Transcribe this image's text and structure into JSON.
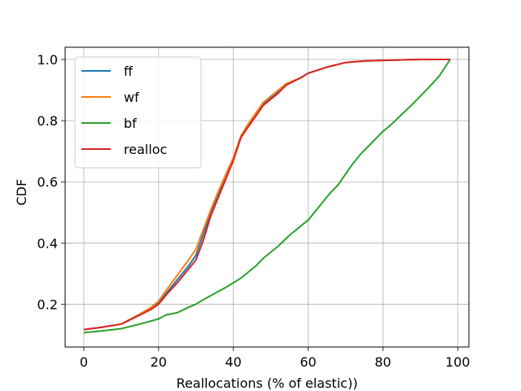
{
  "chart_data": {
    "type": "line",
    "title": "",
    "xlabel": "Reallocations (% of elastic))",
    "ylabel": "CDF",
    "xlim": [
      -5,
      103
    ],
    "ylim": [
      0.06,
      1.04
    ],
    "x_ticks": [
      0,
      20,
      40,
      60,
      80,
      100
    ],
    "y_ticks": [
      0.2,
      0.4,
      0.6,
      0.8,
      1.0
    ],
    "x_tick_labels": [
      "0",
      "20",
      "40",
      "60",
      "80",
      "100"
    ],
    "y_tick_labels": [
      "0.2",
      "0.4",
      "0.6",
      "0.8",
      "1.0"
    ],
    "grid": true,
    "legend_position": "top-left",
    "series": [
      {
        "name": "ff",
        "color": "#1f77b4",
        "x": [
          0,
          5,
          10,
          15,
          18,
          20,
          22,
          25,
          28,
          30,
          32,
          34,
          36,
          38,
          40,
          42,
          44,
          46,
          48,
          50,
          52,
          54,
          56,
          58,
          60,
          65,
          70,
          75,
          80,
          90,
          98
        ],
        "y": [
          0.117,
          0.125,
          0.135,
          0.165,
          0.185,
          0.205,
          0.235,
          0.28,
          0.325,
          0.36,
          0.43,
          0.5,
          0.56,
          0.615,
          0.675,
          0.745,
          0.785,
          0.82,
          0.855,
          0.875,
          0.895,
          0.92,
          0.93,
          0.94,
          0.955,
          0.975,
          0.99,
          0.995,
          0.997,
          1.0,
          1.0
        ]
      },
      {
        "name": "wf",
        "color": "#ff7f0e",
        "x": [
          0,
          5,
          10,
          15,
          18,
          20,
          22,
          25,
          28,
          30,
          32,
          34,
          36,
          38,
          40,
          42,
          44,
          46,
          48,
          50,
          52,
          54,
          56,
          58,
          60,
          65,
          70,
          75,
          80,
          90,
          98
        ],
        "y": [
          0.117,
          0.125,
          0.135,
          0.168,
          0.19,
          0.21,
          0.245,
          0.295,
          0.345,
          0.38,
          0.445,
          0.51,
          0.57,
          0.625,
          0.68,
          0.75,
          0.79,
          0.825,
          0.86,
          0.88,
          0.9,
          0.92,
          0.93,
          0.94,
          0.955,
          0.975,
          0.99,
          0.995,
          0.997,
          1.0,
          1.0
        ]
      },
      {
        "name": "bf",
        "color": "#2ca02c",
        "x": [
          0,
          5,
          10,
          15,
          18,
          20,
          22,
          25,
          28,
          30,
          32,
          35,
          38,
          40,
          42,
          44,
          46,
          48,
          50,
          52,
          55,
          58,
          60,
          62,
          64,
          66,
          68,
          70,
          72,
          74,
          76,
          78,
          80,
          82,
          85,
          88,
          90,
          92,
          95,
          98
        ],
        "y": [
          0.107,
          0.113,
          0.12,
          0.135,
          0.145,
          0.152,
          0.165,
          0.172,
          0.19,
          0.2,
          0.215,
          0.235,
          0.255,
          0.27,
          0.285,
          0.305,
          0.325,
          0.35,
          0.37,
          0.39,
          0.425,
          0.455,
          0.475,
          0.505,
          0.535,
          0.565,
          0.59,
          0.625,
          0.66,
          0.69,
          0.715,
          0.74,
          0.765,
          0.785,
          0.82,
          0.855,
          0.88,
          0.905,
          0.945,
          1.0
        ]
      },
      {
        "name": "realloc",
        "color": "#d62728",
        "x": [
          0,
          5,
          10,
          15,
          18,
          20,
          22,
          25,
          28,
          30,
          32,
          34,
          36,
          38,
          40,
          42,
          44,
          46,
          48,
          50,
          52,
          54,
          56,
          58,
          60,
          65,
          70,
          75,
          80,
          90,
          98
        ],
        "y": [
          0.117,
          0.125,
          0.135,
          0.165,
          0.183,
          0.2,
          0.23,
          0.27,
          0.315,
          0.345,
          0.41,
          0.49,
          0.55,
          0.61,
          0.67,
          0.745,
          0.78,
          0.815,
          0.85,
          0.87,
          0.89,
          0.915,
          0.928,
          0.94,
          0.955,
          0.975,
          0.99,
          0.995,
          0.997,
          1.0,
          1.0
        ]
      }
    ]
  }
}
